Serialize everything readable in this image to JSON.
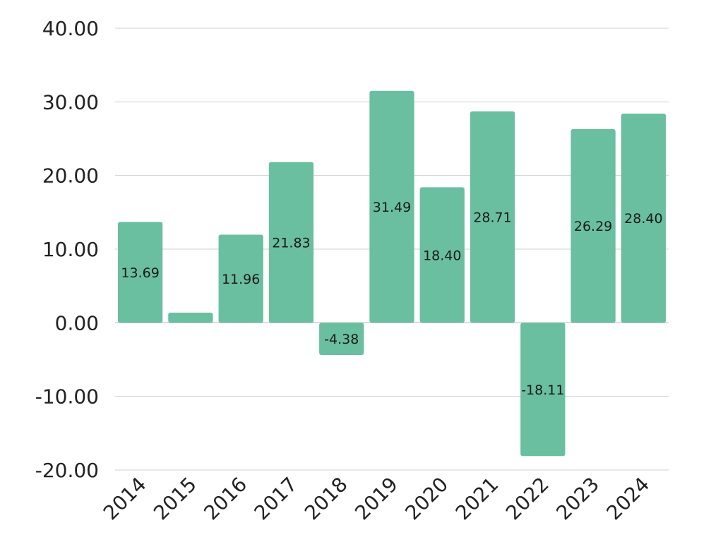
{
  "chart_data": {
    "type": "bar",
    "categories": [
      "2014",
      "2015",
      "2016",
      "2017",
      "2018",
      "2019",
      "2020",
      "2021",
      "2022",
      "2023",
      "2024"
    ],
    "values": [
      13.69,
      1.37,
      11.96,
      21.83,
      -4.38,
      31.49,
      18.4,
      28.71,
      -18.11,
      26.29,
      28.4
    ],
    "data_labels": [
      "13.69",
      "",
      "11.96",
      "21.83",
      "-4.38",
      "31.49",
      "18.40",
      "28.71",
      "-18.11",
      "26.29",
      "28.40"
    ],
    "title": "",
    "xlabel": "",
    "ylabel": "",
    "ylim": [
      -20,
      40
    ],
    "yticks": [
      40,
      30,
      20,
      10,
      0,
      -10,
      -20
    ],
    "ytick_labels": [
      "40.00",
      "30.00",
      "20.00",
      "10.00",
      "0.00",
      "-10.00",
      "-20.00"
    ],
    "bar_color": "#69bfa0",
    "grid": true,
    "legend": "none"
  }
}
